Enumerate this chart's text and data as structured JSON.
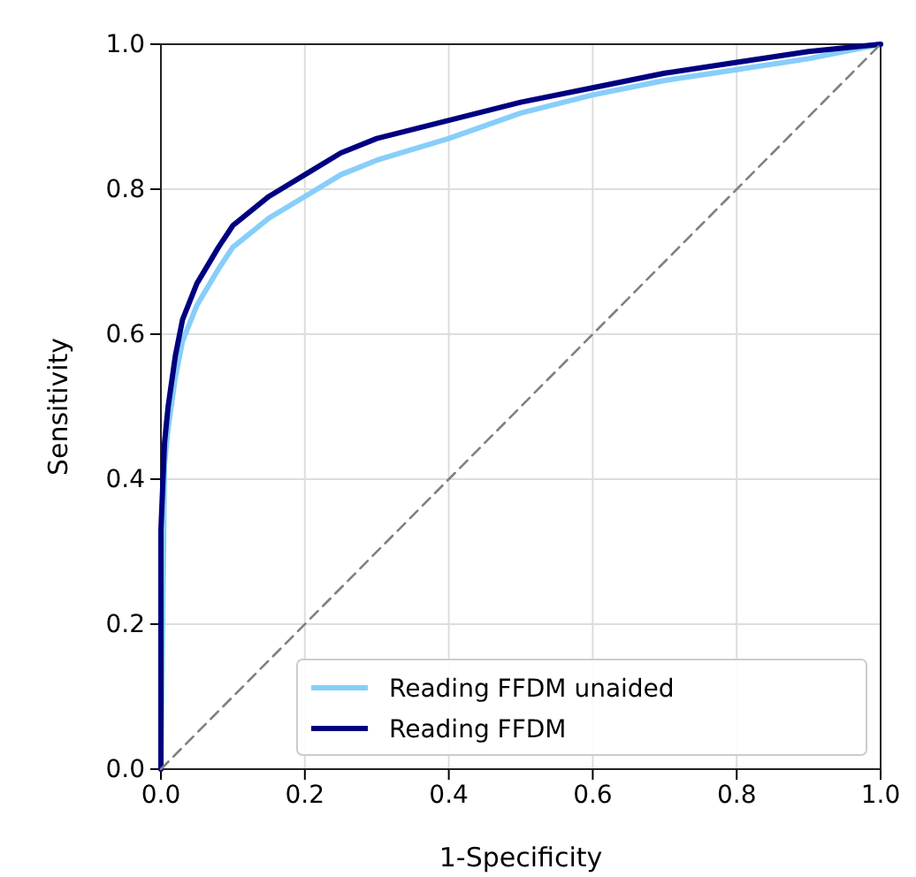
{
  "chart_data": {
    "type": "line",
    "xlabel": "1-Specificity",
    "ylabel": "Sensitivity",
    "xlim": [
      0,
      1
    ],
    "ylim": [
      0,
      1
    ],
    "xticks": [
      {
        "value": 0,
        "label": "0.0"
      },
      0.2,
      0.4,
      0.6,
      0.8,
      {
        "value": 1,
        "label": "1.0"
      }
    ],
    "yticks": [
      {
        "value": 0,
        "label": "0.0"
      },
      0.2,
      0.4,
      0.6,
      0.8,
      {
        "value": 1,
        "label": "1.0"
      }
    ],
    "grid": true,
    "legend": "bottom right",
    "series": [
      {
        "name": "Reading FFDM unaided",
        "color": "#87cefa",
        "x": [
          0,
          0.005,
          0.01,
          0.02,
          0.03,
          0.05,
          0.08,
          0.1,
          0.15,
          0.2,
          0.25,
          0.3,
          0.4,
          0.5,
          0.6,
          0.7,
          0.8,
          0.9,
          1
        ],
        "values": [
          0,
          0.42,
          0.47,
          0.54,
          0.59,
          0.64,
          0.69,
          0.72,
          0.76,
          0.79,
          0.82,
          0.84,
          0.87,
          0.905,
          0.93,
          0.95,
          0.965,
          0.98,
          1
        ]
      },
      {
        "name": "Reading FFDM",
        "color": "#000080",
        "x": [
          0,
          0,
          0.005,
          0.01,
          0.02,
          0.03,
          0.05,
          0.08,
          0.1,
          0.15,
          0.2,
          0.25,
          0.3,
          0.4,
          0.5,
          0.6,
          0.7,
          0.8,
          0.9,
          1
        ],
        "values": [
          0,
          0.33,
          0.45,
          0.5,
          0.57,
          0.62,
          0.67,
          0.72,
          0.75,
          0.79,
          0.82,
          0.85,
          0.87,
          0.895,
          0.92,
          0.94,
          0.96,
          0.975,
          0.99,
          1
        ]
      },
      {
        "color": "#808080",
        "line_style": "dashed",
        "x": [
          0,
          1
        ],
        "values": [
          0,
          1
        ]
      }
    ]
  }
}
